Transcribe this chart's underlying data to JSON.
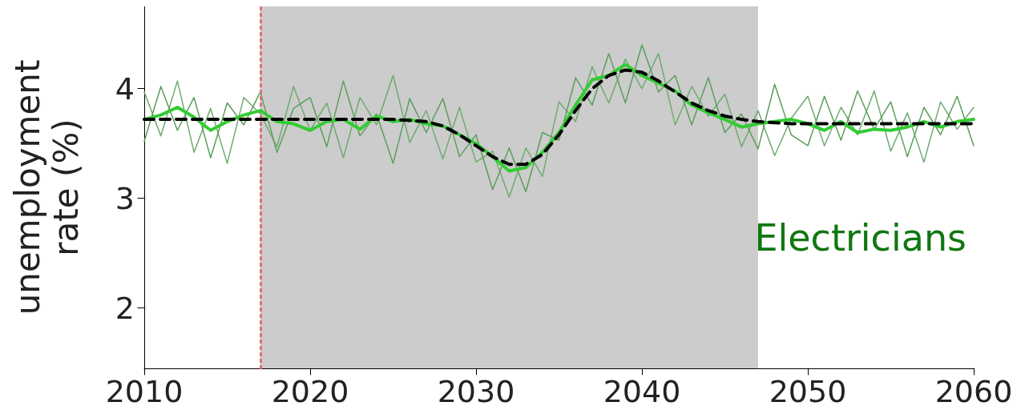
{
  "chart_data": {
    "type": "line",
    "ylabel": "unemployment\nrate (%)",
    "annotations": [
      "Electricians"
    ],
    "x": [
      2010,
      2011,
      2012,
      2013,
      2014,
      2015,
      2016,
      2017,
      2018,
      2019,
      2020,
      2021,
      2022,
      2023,
      2024,
      2025,
      2026,
      2027,
      2028,
      2029,
      2030,
      2031,
      2032,
      2033,
      2034,
      2035,
      2036,
      2037,
      2038,
      2039,
      2040,
      2041,
      2042,
      2043,
      2044,
      2045,
      2046,
      2047,
      2048,
      2049,
      2050,
      2051,
      2052,
      2053,
      2054,
      2055,
      2056,
      2057,
      2058,
      2059,
      2060
    ],
    "series": [
      {
        "color": "#6faa6f",
        "values": [
          3.97,
          3.57,
          4.07,
          3.42,
          3.82,
          3.32,
          3.92,
          3.77,
          3.47,
          4.02,
          3.62,
          3.87,
          3.37,
          3.92,
          3.67,
          4.12,
          3.51,
          3.8,
          3.36,
          3.83,
          3.33,
          3.43,
          3.01,
          3.46,
          3.2,
          3.88,
          3.7,
          4.2,
          3.87,
          4.27,
          4.0,
          4.32,
          3.67,
          4.02,
          3.75,
          3.95,
          3.47,
          3.8,
          3.39,
          3.73,
          3.93,
          3.48,
          3.83,
          3.58,
          3.98,
          3.43,
          3.78,
          3.33,
          3.88,
          3.63,
          3.83
        ]
      },
      {
        "color": "#5a9e5a",
        "values": [
          3.52,
          4.02,
          3.62,
          3.92,
          3.37,
          3.87,
          3.67,
          3.97,
          3.42,
          3.82,
          3.92,
          3.47,
          4.07,
          3.57,
          3.77,
          3.32,
          3.91,
          3.6,
          3.91,
          3.38,
          3.58,
          3.08,
          3.46,
          3.06,
          3.6,
          3.53,
          4.1,
          3.85,
          4.32,
          3.87,
          4.4,
          3.97,
          4.12,
          3.67,
          4.1,
          3.6,
          3.77,
          3.45,
          4.04,
          3.58,
          3.48,
          3.93,
          3.53,
          3.98,
          3.63,
          3.88,
          3.38,
          3.83,
          3.58,
          3.93,
          3.48
        ]
      },
      {
        "color": "#33cc33",
        "values": [
          3.72,
          3.76,
          3.83,
          3.74,
          3.62,
          3.7,
          3.76,
          3.8,
          3.7,
          3.68,
          3.62,
          3.7,
          3.72,
          3.63,
          3.75,
          3.7,
          3.72,
          3.68,
          3.66,
          3.58,
          3.5,
          3.38,
          3.25,
          3.28,
          3.42,
          3.6,
          3.85,
          4.08,
          4.12,
          4.22,
          4.12,
          4.05,
          3.98,
          3.85,
          3.78,
          3.72,
          3.65,
          3.68,
          3.7,
          3.72,
          3.68,
          3.62,
          3.7,
          3.6,
          3.63,
          3.62,
          3.65,
          3.7,
          3.65,
          3.7,
          3.72
        ]
      },
      {
        "color": "#000000",
        "line_style": "dashed",
        "values": [
          3.72,
          3.72,
          3.72,
          3.72,
          3.72,
          3.72,
          3.72,
          3.72,
          3.72,
          3.72,
          3.72,
          3.72,
          3.72,
          3.72,
          3.72,
          3.72,
          3.71,
          3.7,
          3.66,
          3.58,
          3.48,
          3.38,
          3.31,
          3.31,
          3.4,
          3.58,
          3.8,
          4.0,
          4.12,
          4.17,
          4.15,
          4.07,
          3.97,
          3.87,
          3.8,
          3.75,
          3.72,
          3.7,
          3.69,
          3.68,
          3.68,
          3.68,
          3.68,
          3.68,
          3.68,
          3.68,
          3.68,
          3.68,
          3.68,
          3.68,
          3.68
        ]
      }
    ],
    "xlim": [
      2010,
      2060
    ],
    "xticks": [
      2010,
      2020,
      2030,
      2040,
      2050,
      2060
    ],
    "ylim": [
      1.45,
      4.75
    ],
    "yticks": [
      2,
      3,
      4
    ],
    "ref_lines": [
      {
        "axis": "x",
        "value": 2017,
        "color": "#e07070",
        "line_style": "dotted"
      }
    ],
    "bands": [
      {
        "axis": "x",
        "from": 2017,
        "to": 2047,
        "color": "#cccccc"
      }
    ],
    "grid": false,
    "marker": "none",
    "line_style": "solid"
  }
}
